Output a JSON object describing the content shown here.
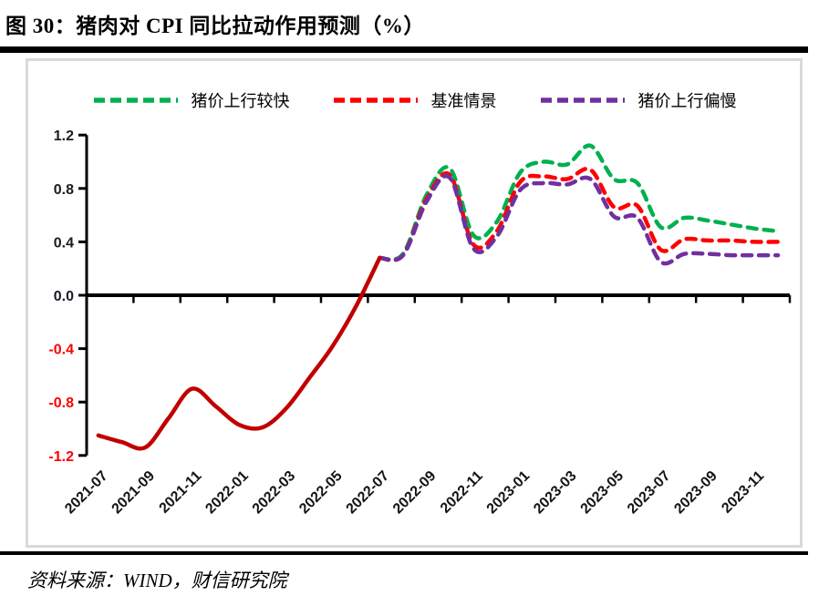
{
  "header": {
    "title": "图 30：猪肉对 CPI 同比拉动作用预测（%）"
  },
  "footer": {
    "source": "资料来源：WIND，财信研究院"
  },
  "chart_data": {
    "type": "line",
    "title": "猪肉对 CPI 同比拉动作用预测（%）",
    "grid": false,
    "legend_position": "top-center",
    "ylim": [
      -1.2,
      1.2
    ],
    "y_ticks": [
      1.2,
      0.8,
      0.4,
      0.0,
      -0.4,
      -0.8,
      -1.2
    ],
    "y_tick_labels": [
      "1.2",
      "0.8",
      "0.4",
      "0.0",
      "-0.4",
      "-0.8",
      "-1.2"
    ],
    "x_axis_shown_labels": [
      "2021-07",
      "2021-09",
      "2021-11",
      "2022-01",
      "2022-03",
      "2022-05",
      "2022-07",
      "2022-09",
      "2022-11",
      "2023-01",
      "2023-03",
      "2023-05",
      "2023-07",
      "2023-09",
      "2023-11"
    ],
    "categories": [
      "2021-07",
      "2021-08",
      "2021-09",
      "2021-10",
      "2021-11",
      "2021-12",
      "2022-01",
      "2022-02",
      "2022-03",
      "2022-04",
      "2022-05",
      "2022-06",
      "2022-07",
      "2022-08",
      "2022-09",
      "2022-10",
      "2022-11",
      "2022-12",
      "2023-01",
      "2023-02",
      "2023-03",
      "2023-04",
      "2023-05",
      "2023-06",
      "2023-07",
      "2023-08",
      "2023-09",
      "2023-10",
      "2023-11",
      "2023-12"
    ],
    "colors": {
      "axis": "#000000",
      "positive_tick_label": "#1a1a24",
      "negative_tick_label": "#fe0000",
      "history_line": "#c00000",
      "fast_line": "#00b050",
      "baseline_line": "#ff0000",
      "slow_line": "#7030a0"
    },
    "series": [
      {
        "key": "fast",
        "name": "猪价上行较快",
        "color": "#00b050",
        "dashed": true,
        "in_legend": true,
        "values": [
          null,
          null,
          null,
          null,
          null,
          null,
          null,
          null,
          null,
          null,
          null,
          null,
          0.28,
          0.31,
          0.75,
          0.95,
          0.45,
          0.55,
          0.92,
          1.0,
          0.98,
          1.12,
          0.87,
          0.84,
          0.51,
          0.58,
          0.56,
          0.53,
          0.5,
          0.48
        ]
      },
      {
        "key": "baseline",
        "name": "基准情景",
        "color": "#ff0000",
        "dashed": true,
        "in_legend": true,
        "values": [
          null,
          null,
          null,
          null,
          null,
          null,
          null,
          null,
          null,
          null,
          null,
          null,
          0.28,
          0.3,
          0.72,
          0.9,
          0.38,
          0.48,
          0.85,
          0.89,
          0.87,
          0.94,
          0.66,
          0.67,
          0.34,
          0.42,
          0.41,
          0.41,
          0.4,
          0.4
        ]
      },
      {
        "key": "slow",
        "name": "猪价上行偏慢",
        "color": "#7030a0",
        "dashed": true,
        "in_legend": true,
        "values": [
          null,
          null,
          null,
          null,
          null,
          null,
          null,
          null,
          null,
          null,
          null,
          null,
          0.28,
          0.3,
          0.7,
          0.88,
          0.35,
          0.44,
          0.79,
          0.84,
          0.83,
          0.87,
          0.59,
          0.58,
          0.25,
          0.31,
          0.31,
          0.3,
          0.3,
          0.3
        ]
      },
      {
        "key": "history",
        "name": "",
        "color": "#c00000",
        "dashed": false,
        "in_legend": false,
        "values": [
          -1.05,
          -1.1,
          -1.14,
          -0.92,
          -0.7,
          -0.83,
          -0.97,
          -0.99,
          -0.85,
          -0.62,
          -0.38,
          -0.08,
          0.28,
          null,
          null,
          null,
          null,
          null,
          null,
          null,
          null,
          null,
          null,
          null,
          null,
          null,
          null,
          null,
          null,
          null
        ]
      }
    ]
  }
}
